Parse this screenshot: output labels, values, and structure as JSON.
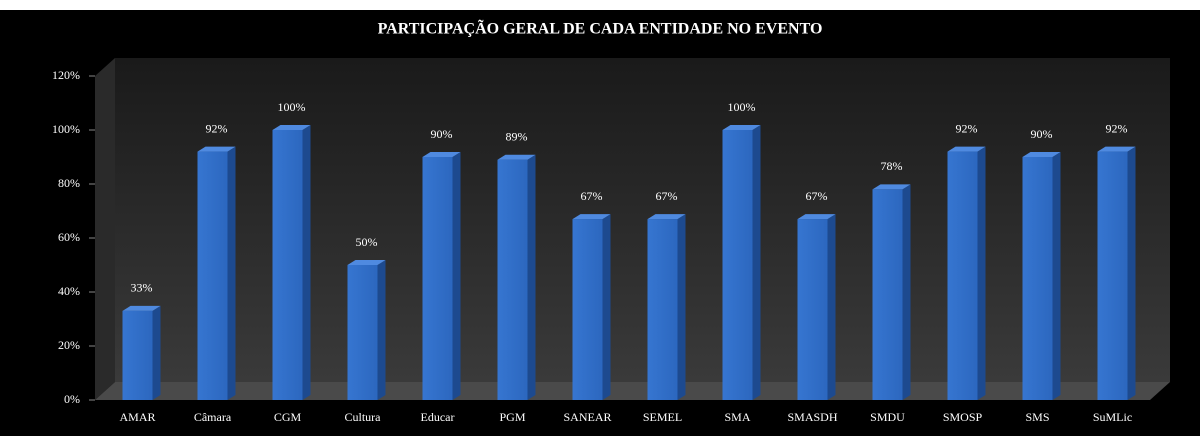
{
  "chart_data": {
    "type": "bar",
    "title": "PARTICIPAÇÃO GERAL DE CADA ENTIDADE NO EVENTO",
    "categories": [
      "AMAR",
      "Câmara",
      "CGM",
      "Cultura",
      "Educar",
      "PGM",
      "SANEAR",
      "SEMEL",
      "SMA",
      "SMASDH",
      "SMDU",
      "SMOSP",
      "SMS",
      "SuMLic"
    ],
    "values": [
      33,
      92,
      100,
      50,
      90,
      89,
      67,
      67,
      100,
      67,
      78,
      92,
      90,
      92
    ],
    "value_labels": [
      "33%",
      "92%",
      "100%",
      "50%",
      "90%",
      "89%",
      "67%",
      "67%",
      "100%",
      "67%",
      "78%",
      "92%",
      "90%",
      "92%"
    ],
    "color": "#2f6fc9",
    "ylim": [
      0,
      120
    ],
    "yticks": [
      {
        "value": 0,
        "label": "0%"
      },
      {
        "value": 20,
        "label": "20%"
      },
      {
        "value": 40,
        "label": "40%"
      },
      {
        "value": 60,
        "label": "60%"
      },
      {
        "value": 80,
        "label": "80%"
      },
      {
        "value": 100,
        "label": "100%"
      },
      {
        "value": 120,
        "label": "120%"
      }
    ]
  }
}
